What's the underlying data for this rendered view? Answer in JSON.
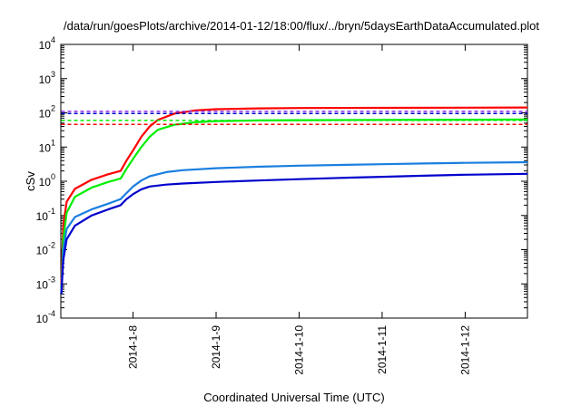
{
  "chart_data": {
    "type": "line",
    "title": "/data/run/goesPlots/archive/2014-01-12/18:00/flux/../bryn/5daysEarthDataAccumulated.plot",
    "xlabel": "Coordinated Universal Time (UTC)",
    "ylabel": "cSv",
    "yscale": "log",
    "ylim_exponents": [
      -4,
      4
    ],
    "y_ticks": [
      {
        "base": "10",
        "exp": "-4"
      },
      {
        "base": "10",
        "exp": "-3"
      },
      {
        "base": "10",
        "exp": "-2"
      },
      {
        "base": "10",
        "exp": "-1"
      },
      {
        "base": "10",
        "exp": "0"
      },
      {
        "base": "10",
        "exp": "1"
      },
      {
        "base": "10",
        "exp": "2"
      },
      {
        "base": "10",
        "exp": "3"
      },
      {
        "base": "10",
        "exp": "4"
      }
    ],
    "xlim_days": [
      7.13,
      12.75
    ],
    "x_ticks": [
      {
        "day": 8,
        "label": "2014-1-8"
      },
      {
        "day": 9,
        "label": "2014-1-9"
      },
      {
        "day": 10,
        "label": "2014-1-10"
      },
      {
        "day": 11,
        "label": "2014-1-11"
      },
      {
        "day": 12,
        "label": "2014-1-12"
      }
    ],
    "grid": false,
    "legend": "none",
    "series": [
      {
        "color": "#ff0000",
        "style": "solid",
        "points": [
          [
            7.135,
            0.001
          ],
          [
            7.16,
            0.05
          ],
          [
            7.2,
            0.25
          ],
          [
            7.3,
            0.6
          ],
          [
            7.5,
            1.1
          ],
          [
            7.7,
            1.6
          ],
          [
            7.85,
            2.0
          ],
          [
            7.92,
            4.0
          ],
          [
            8.0,
            8.0
          ],
          [
            8.1,
            20.0
          ],
          [
            8.2,
            40.0
          ],
          [
            8.3,
            62.0
          ],
          [
            8.5,
            95.0
          ],
          [
            8.75,
            118.0
          ],
          [
            9.0,
            128.0
          ],
          [
            9.5,
            135.0
          ],
          [
            10.0,
            138.0
          ],
          [
            11.0,
            140.0
          ],
          [
            12.0,
            142.0
          ],
          [
            12.75,
            143.0
          ]
        ]
      },
      {
        "color": "#00ee00",
        "style": "solid",
        "points": [
          [
            7.135,
            0.0005
          ],
          [
            7.16,
            0.02
          ],
          [
            7.2,
            0.12
          ],
          [
            7.3,
            0.35
          ],
          [
            7.5,
            0.65
          ],
          [
            7.7,
            0.95
          ],
          [
            7.85,
            1.2
          ],
          [
            7.92,
            2.3
          ],
          [
            8.0,
            4.5
          ],
          [
            8.1,
            10.0
          ],
          [
            8.2,
            20.0
          ],
          [
            8.3,
            32.0
          ],
          [
            8.5,
            45.0
          ],
          [
            8.75,
            53.0
          ],
          [
            9.0,
            57.0
          ],
          [
            9.5,
            60.0
          ],
          [
            10.0,
            61.0
          ],
          [
            11.0,
            62.0
          ],
          [
            12.0,
            63.0
          ],
          [
            12.75,
            64.0
          ]
        ]
      },
      {
        "color": "#1a7fe0",
        "style": "solid",
        "points": [
          [
            7.135,
            0.0005
          ],
          [
            7.16,
            0.01
          ],
          [
            7.2,
            0.04
          ],
          [
            7.3,
            0.09
          ],
          [
            7.5,
            0.15
          ],
          [
            7.7,
            0.22
          ],
          [
            7.85,
            0.3
          ],
          [
            7.92,
            0.45
          ],
          [
            8.0,
            0.7
          ],
          [
            8.1,
            1.05
          ],
          [
            8.2,
            1.4
          ],
          [
            8.4,
            1.85
          ],
          [
            8.6,
            2.1
          ],
          [
            9.0,
            2.4
          ],
          [
            9.5,
            2.65
          ],
          [
            10.0,
            2.85
          ],
          [
            10.5,
            3.0
          ],
          [
            11.0,
            3.15
          ],
          [
            11.5,
            3.3
          ],
          [
            12.0,
            3.45
          ],
          [
            12.75,
            3.6
          ]
        ]
      },
      {
        "color": "#0000cc",
        "style": "solid",
        "points": [
          [
            7.135,
            0.0005
          ],
          [
            7.16,
            0.005
          ],
          [
            7.2,
            0.02
          ],
          [
            7.3,
            0.05
          ],
          [
            7.5,
            0.1
          ],
          [
            7.7,
            0.15
          ],
          [
            7.85,
            0.2
          ],
          [
            7.92,
            0.3
          ],
          [
            8.0,
            0.42
          ],
          [
            8.1,
            0.58
          ],
          [
            8.2,
            0.7
          ],
          [
            8.4,
            0.8
          ],
          [
            8.6,
            0.86
          ],
          [
            9.0,
            0.95
          ],
          [
            9.5,
            1.05
          ],
          [
            10.0,
            1.15
          ],
          [
            10.5,
            1.25
          ],
          [
            11.0,
            1.35
          ],
          [
            11.5,
            1.45
          ],
          [
            12.0,
            1.55
          ],
          [
            12.75,
            1.65
          ]
        ]
      },
      {
        "color": "#8a2be2",
        "style": "dashed",
        "points": [
          [
            7.135,
            110.0
          ],
          [
            12.75,
            110.0
          ]
        ]
      },
      {
        "color": "#0000cc",
        "style": "dashed",
        "points": [
          [
            7.135,
            95.0
          ],
          [
            12.75,
            95.0
          ]
        ]
      },
      {
        "color": "#00ee00",
        "style": "dashed",
        "points": [
          [
            7.135,
            60.0
          ],
          [
            12.75,
            60.0
          ]
        ]
      },
      {
        "color": "#ff0000",
        "style": "dashed",
        "points": [
          [
            7.135,
            46.0
          ],
          [
            12.75,
            46.0
          ]
        ]
      }
    ]
  }
}
